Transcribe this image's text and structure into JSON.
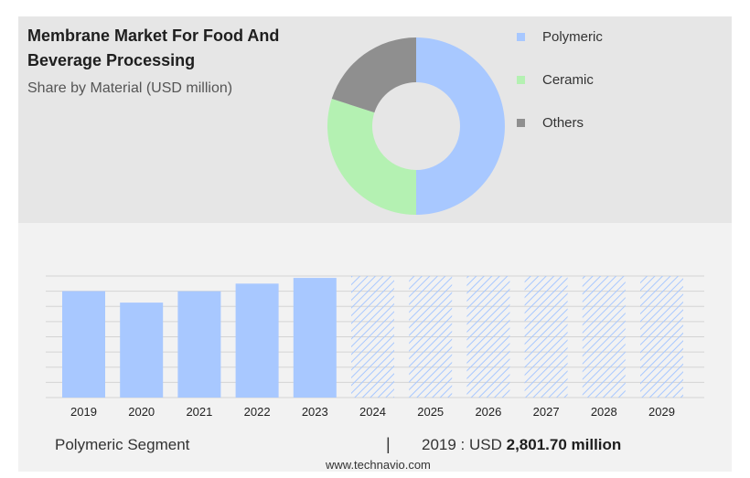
{
  "header": {
    "title": "Membrane Market For Food And Beverage Processing",
    "subtitle": "Share by Material (USD million)"
  },
  "colors": {
    "polymeric": "#a8c8ff",
    "ceramic": "#b4f1b2",
    "others": "#8f8f8f",
    "forecast_hatch": "#a8c8ff"
  },
  "chart_data": [
    {
      "type": "pie",
      "style": "donut",
      "labels": [
        "Polymeric",
        "Ceramic",
        "Others"
      ],
      "values": [
        50,
        30,
        20
      ],
      "legend_position": "right"
    },
    {
      "type": "bar",
      "categories": [
        "2019",
        "2020",
        "2021",
        "2022",
        "2023",
        "2024",
        "2025",
        "2026",
        "2027",
        "2028",
        "2029"
      ],
      "values": [
        2801.7,
        2500,
        2800,
        3000,
        3150,
        null,
        null,
        null,
        null,
        null,
        null
      ],
      "forecast_categories": [
        "2024",
        "2025",
        "2026",
        "2027",
        "2028",
        "2029"
      ],
      "ylim": [
        0,
        3200
      ],
      "grid": true,
      "xlabel": "",
      "ylabel": ""
    }
  ],
  "footer": {
    "segment": "Polymeric Segment",
    "separator": "|",
    "value_prefix": "2019 : USD",
    "value_bold": "2,801.70 million",
    "source": "www.technavio.com"
  }
}
